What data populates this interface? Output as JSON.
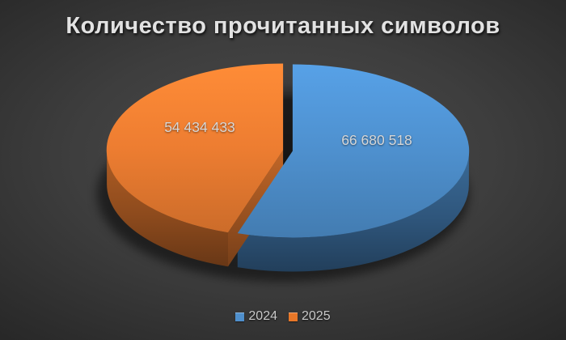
{
  "title": "Количество прочитанных символов",
  "chart_data": {
    "type": "pie",
    "style": "3d-exploded",
    "title": "Количество прочитанных символов",
    "categories": [
      "2024",
      "2025"
    ],
    "values": [
      66680518,
      54434433
    ],
    "value_labels": [
      "66 680 518",
      "54 434 433"
    ],
    "slice_colors": [
      "#4e90ce",
      "#ed7d31"
    ],
    "start_angle_deg": 0,
    "direction": "clockwise",
    "legend_position": "bottom",
    "data_labels_shown": true
  },
  "legend": {
    "items": [
      {
        "label": "2024",
        "color": "#4f8fcc"
      },
      {
        "label": "2025",
        "color": "#e87728"
      }
    ]
  },
  "colors": {
    "background_center": "#4a4a4a",
    "background_edge": "#181818",
    "title_text": "#e2e2e2",
    "slice_label_text": "#d7d7d7",
    "legend_text": "#c9c9c9",
    "blue_side_wall": "#2a5c8c",
    "orange_side_wall": "#a85715",
    "pie_shadow": "#000000"
  }
}
